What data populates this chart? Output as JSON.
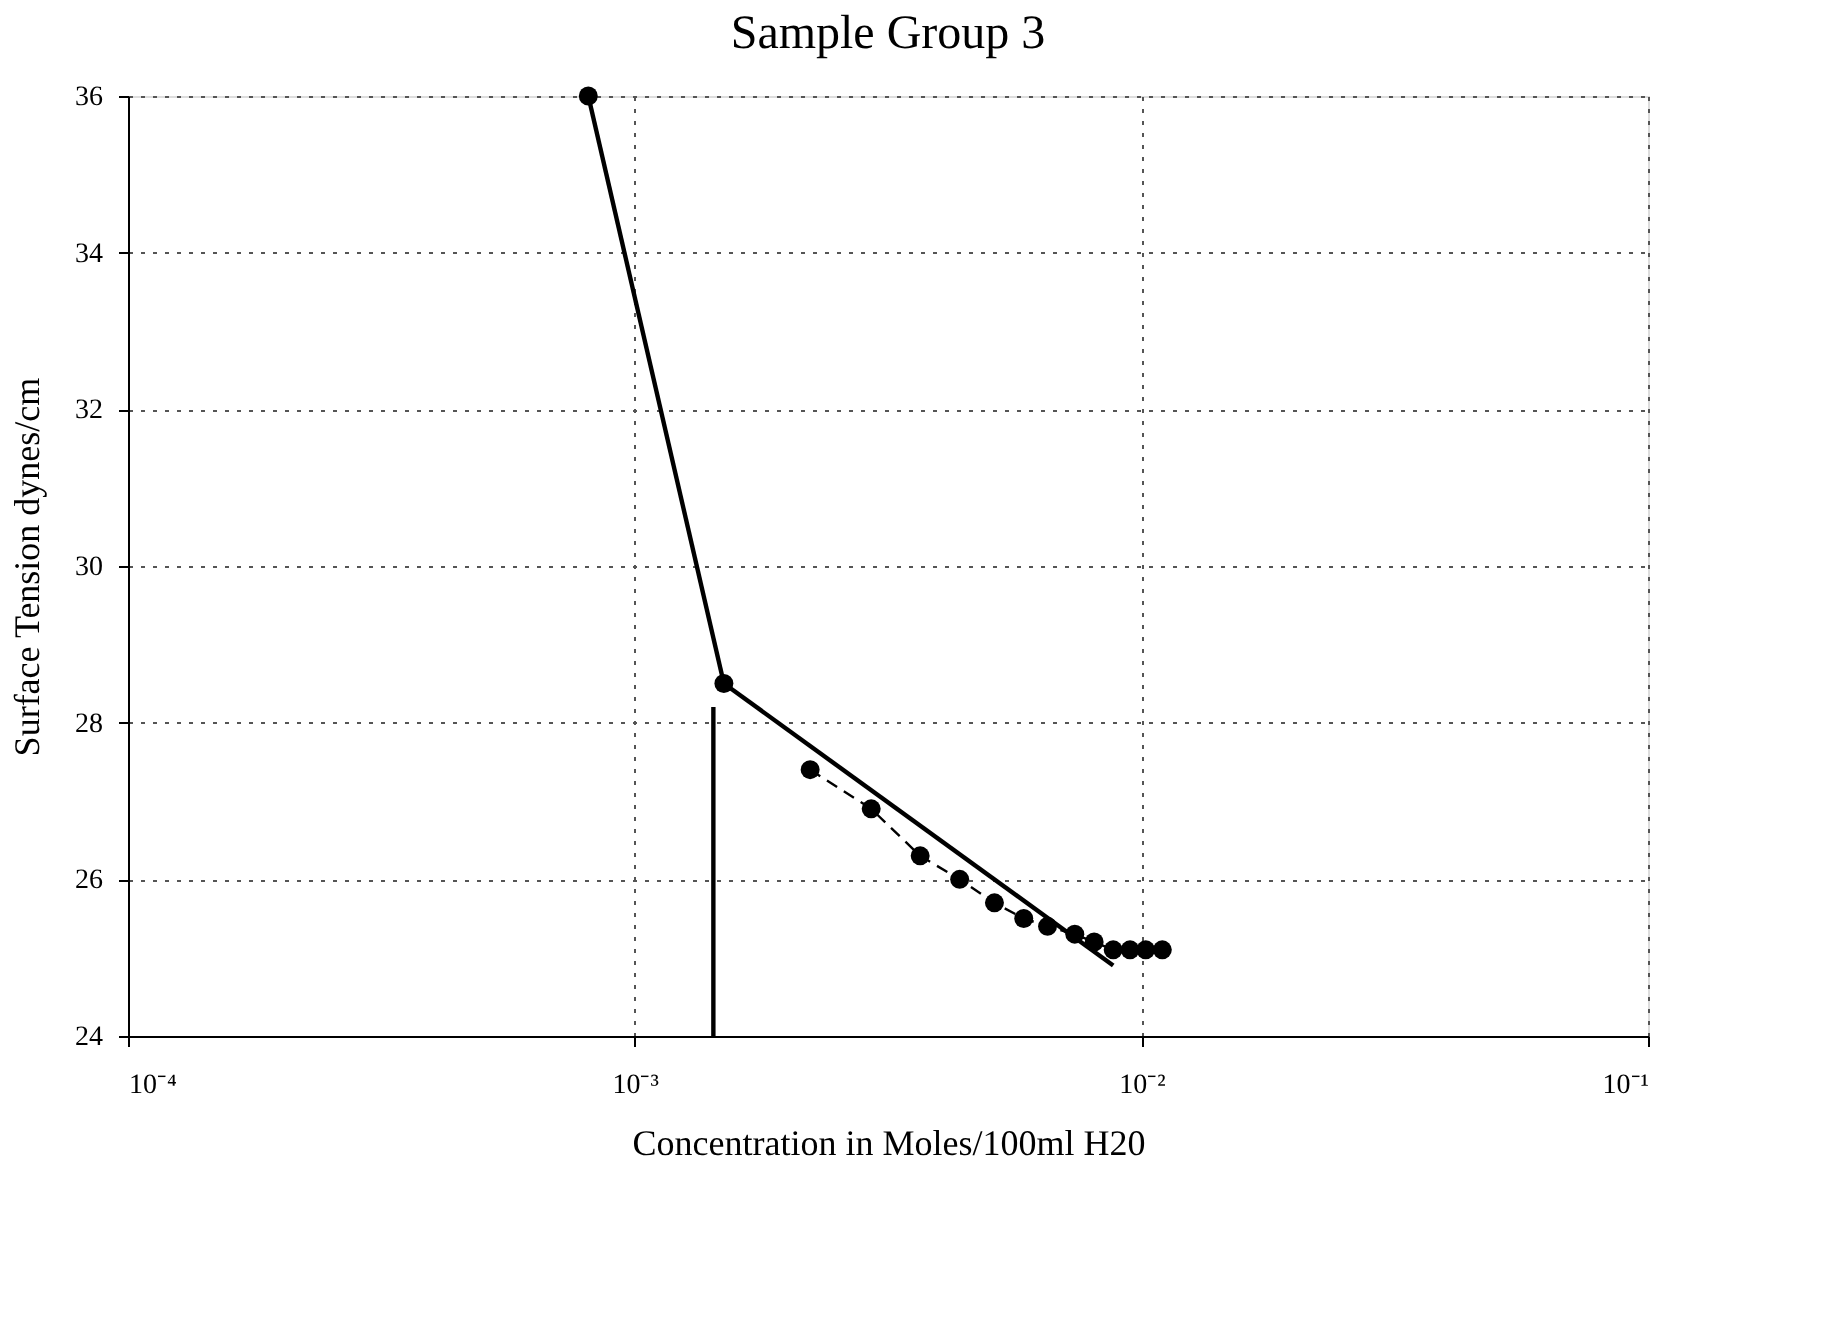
{
  "chart_data": {
    "type": "line",
    "title": "Sample Group 3",
    "xlabel": "Concentration in Moles/100ml H20",
    "ylabel": "Surface Tension dynes/cm",
    "log": "x",
    "xlim": [
      0.0001,
      0.1
    ],
    "ylim": [
      24,
      36
    ],
    "xticks": [
      {
        "value": 0.0001,
        "label": "10⁻⁴"
      },
      {
        "value": 0.001,
        "label": "10⁻³"
      },
      {
        "value": 0.01,
        "label": "10⁻²"
      },
      {
        "value": 0.1,
        "label": "10⁻¹"
      }
    ],
    "yticks": [
      24,
      26,
      28,
      30,
      32,
      34,
      36
    ],
    "grid": true,
    "series": [
      {
        "color": "#000000",
        "marker": "circle",
        "line_style": "solid",
        "x": [
          0.00081,
          0.0015
        ],
        "values": [
          36,
          28.5
        ]
      },
      {
        "color": "#000000",
        "marker": "none",
        "line_style": "solid",
        "x": [
          0.0015,
          0.0088
        ],
        "values": [
          28.5,
          24.9
        ]
      },
      {
        "color": "#000000",
        "marker": "none",
        "line_style": "solid",
        "x": [
          0.00143,
          0.00143
        ],
        "values": [
          24,
          28.2
        ]
      },
      {
        "color": "#000000",
        "marker": "circle",
        "line_style": "dashed",
        "x": [
          0.00222,
          0.00293,
          0.00366,
          0.00438,
          0.00513,
          0.00586,
          0.00653,
          0.00739,
          0.00807,
          0.0088,
          0.0095,
          0.0102,
          0.011
        ],
        "values": [
          27.4,
          26.9,
          26.3,
          26.0,
          25.7,
          25.5,
          25.4,
          25.3,
          25.2,
          25.1,
          25.1,
          25.1,
          25.1
        ]
      }
    ]
  }
}
